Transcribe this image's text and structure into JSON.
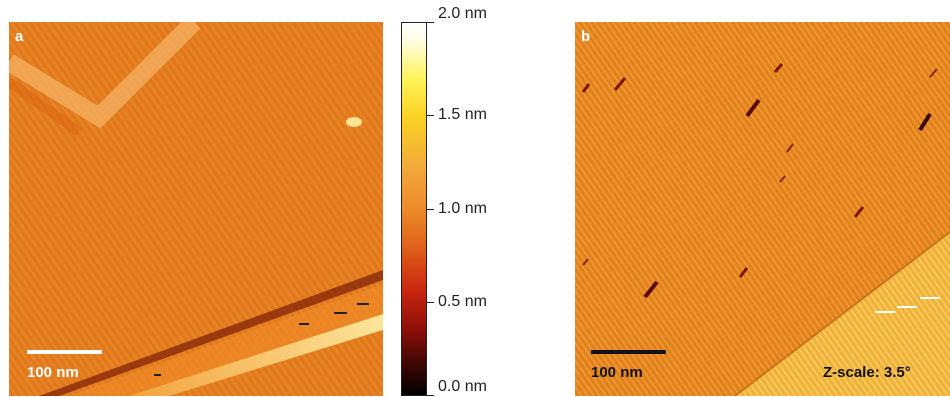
{
  "panel_a": {
    "letter": "a",
    "scale_bar_label": "100 nm",
    "colors": {
      "scale_bar": "#ffffff",
      "label": "#ffffff"
    }
  },
  "colorbar": {
    "tick_labels": [
      "2.0 nm",
      "1.5 nm",
      "1.0 nm",
      "0.5 nm",
      "0.0 nm"
    ],
    "colors": [
      "#ffffff",
      "#fff35a",
      "#ee8a2a",
      "#c9260f",
      "#000000"
    ]
  },
  "panel_b": {
    "letter": "b",
    "scale_bar_label": "100 nm",
    "zscale_label": "Z-scale: 3.5°",
    "colors": {
      "scale_bar": "#111111",
      "label": "#111111"
    }
  }
}
